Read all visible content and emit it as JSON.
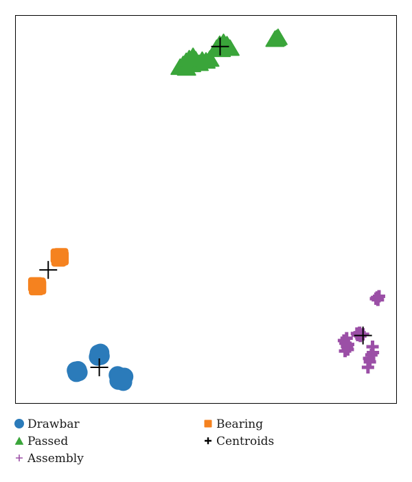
{
  "chart_data": {
    "type": "scatter",
    "title": "",
    "xlabel": "",
    "ylabel": "",
    "axes_visible": false,
    "grid": false,
    "legend_position": "bottom",
    "xlim": [
      0,
      100
    ],
    "ylim": [
      0,
      100
    ],
    "series": [
      {
        "name": "Drawbar",
        "marker": "circle",
        "color": "#2b7bba",
        "points": [
          [
            16.2,
            8.2
          ],
          [
            16.6,
            8.0
          ],
          [
            15.8,
            8.5
          ],
          [
            16.0,
            7.8
          ],
          [
            16.4,
            8.6
          ],
          [
            22.0,
            12.5
          ],
          [
            22.4,
            12.2
          ],
          [
            21.8,
            12.9
          ],
          [
            22.3,
            13.1
          ],
          [
            21.6,
            12.0
          ],
          [
            26.8,
            7.3
          ],
          [
            27.3,
            6.8
          ],
          [
            27.0,
            5.8
          ],
          [
            28.0,
            6.4
          ],
          [
            28.3,
            5.5
          ],
          [
            27.6,
            7.0
          ],
          [
            28.6,
            6.9
          ],
          [
            27.2,
            6.2
          ]
        ]
      },
      {
        "name": "Bearing",
        "marker": "square",
        "color": "#f5821f",
        "points": [
          [
            5.7,
            30.2
          ],
          [
            5.3,
            30.6
          ],
          [
            6.1,
            30.0
          ],
          [
            5.5,
            29.8
          ],
          [
            6.0,
            30.5
          ],
          [
            11.5,
            37.6
          ],
          [
            11.2,
            38.0
          ],
          [
            11.9,
            38.1
          ],
          [
            11.4,
            37.2
          ],
          [
            12.0,
            37.5
          ]
        ]
      },
      {
        "name": "Passed",
        "marker": "triangle",
        "color": "#3aa53a",
        "points": [
          [
            43.2,
            86.8
          ],
          [
            44.0,
            87.5
          ],
          [
            44.8,
            88.3
          ],
          [
            45.6,
            89.0
          ],
          [
            46.6,
            89.6
          ],
          [
            47.3,
            88.7
          ],
          [
            48.2,
            87.8
          ],
          [
            46.2,
            87.5
          ],
          [
            44.9,
            86.6
          ],
          [
            49.0,
            88.6
          ],
          [
            50.0,
            88.4
          ],
          [
            51.0,
            88.9
          ],
          [
            52.8,
            91.7
          ],
          [
            53.6,
            92.7
          ],
          [
            54.6,
            93.2
          ],
          [
            55.5,
            92.6
          ],
          [
            56.3,
            91.7
          ],
          [
            54.0,
            91.4
          ],
          [
            55.7,
            91.8
          ],
          [
            68.5,
            94.2
          ],
          [
            68.9,
            94.5
          ],
          [
            68.1,
            94.0
          ]
        ]
      },
      {
        "name": "Assembly",
        "marker": "plus",
        "color": "#9b4fa6",
        "points": [
          [
            94.9,
            27.3
          ],
          [
            95.4,
            27.6
          ],
          [
            94.6,
            27.0
          ],
          [
            95.1,
            26.7
          ],
          [
            86.2,
            16.2
          ],
          [
            86.6,
            15.5
          ],
          [
            87.0,
            14.7
          ],
          [
            86.5,
            13.5
          ],
          [
            87.2,
            13.9
          ],
          [
            86.9,
            16.8
          ],
          [
            87.3,
            15.2
          ],
          [
            89.8,
            17.6
          ],
          [
            90.3,
            18.2
          ],
          [
            91.2,
            17.8
          ],
          [
            90.5,
            17.4
          ],
          [
            89.6,
            18.0
          ],
          [
            93.7,
            14.6
          ],
          [
            93.4,
            12.5
          ],
          [
            93.0,
            10.7
          ],
          [
            92.5,
            9.3
          ],
          [
            93.8,
            13.1
          ],
          [
            92.8,
            11.6
          ]
        ]
      },
      {
        "name": "Centroids",
        "marker": "plus-large",
        "color": "#000000",
        "points": [
          [
            22.0,
            9.3
          ],
          [
            8.6,
            34.4
          ],
          [
            53.7,
            92.0
          ],
          [
            91.2,
            17.5
          ]
        ]
      }
    ],
    "legend": [
      {
        "label": "Drawbar",
        "series": "Drawbar",
        "column": 0,
        "row": 0
      },
      {
        "label": "Bearing",
        "series": "Bearing",
        "column": 1,
        "row": 0
      },
      {
        "label": "Passed",
        "series": "Passed",
        "column": 0,
        "row": 1
      },
      {
        "label": "Centroids",
        "series": "Centroids",
        "column": 1,
        "row": 1
      },
      {
        "label": "Assembly",
        "series": "Assembly",
        "column": 0,
        "row": 2
      }
    ]
  }
}
